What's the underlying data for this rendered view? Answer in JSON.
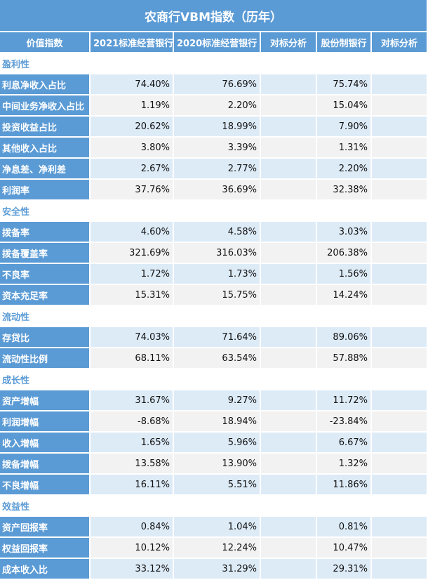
{
  "title": "农商行VBM指数（历年）",
  "headers": [
    "价值指数",
    "2021标准经营银行",
    "2020标准经营银行",
    "对标分析",
    "股份制银行",
    "对标分析"
  ],
  "sections": [
    {
      "name": "盈利性",
      "rows": [
        {
          "label": "利息净收入占比",
          "v2021": "74.40%",
          "v2020": "76.69%",
          "a1": "",
          "joint": "75.74%",
          "a2": ""
        },
        {
          "label": "中间业务净收入占比",
          "v2021": "1.19%",
          "v2020": "2.20%",
          "a1": "",
          "joint": "15.04%",
          "a2": ""
        },
        {
          "label": "投资收益占比",
          "v2021": "20.62%",
          "v2020": "18.99%",
          "a1": "",
          "joint": "7.90%",
          "a2": ""
        },
        {
          "label": "其他收入占比",
          "v2021": "3.80%",
          "v2020": "3.39%",
          "a1": "",
          "joint": "1.31%",
          "a2": ""
        },
        {
          "label": "净息差、净利差",
          "v2021": "2.67%",
          "v2020": "2.77%",
          "a1": "",
          "joint": "2.20%",
          "a2": ""
        },
        {
          "label": "利润率",
          "v2021": "37.76%",
          "v2020": "36.69%",
          "a1": "",
          "joint": "32.38%",
          "a2": ""
        }
      ]
    },
    {
      "name": "安全性",
      "rows": [
        {
          "label": "拨备率",
          "v2021": "4.60%",
          "v2020": "4.58%",
          "a1": "",
          "joint": "3.03%",
          "a2": ""
        },
        {
          "label": "拨备覆盖率",
          "v2021": "321.69%",
          "v2020": "316.03%",
          "a1": "",
          "joint": "206.38%",
          "a2": ""
        },
        {
          "label": "不良率",
          "v2021": "1.72%",
          "v2020": "1.73%",
          "a1": "",
          "joint": "1.56%",
          "a2": ""
        },
        {
          "label": "资本充足率",
          "v2021": "15.31%",
          "v2020": "15.75%",
          "a1": "",
          "joint": "14.24%",
          "a2": ""
        }
      ]
    },
    {
      "name": "流动性",
      "rows": [
        {
          "label": "存贷比",
          "v2021": "74.03%",
          "v2020": "71.64%",
          "a1": "",
          "joint": "89.06%",
          "a2": ""
        },
        {
          "label": "流动性比例",
          "v2021": "68.11%",
          "v2020": "63.54%",
          "a1": "",
          "joint": "57.88%",
          "a2": ""
        }
      ]
    },
    {
      "name": "成长性",
      "rows": [
        {
          "label": "资产增幅",
          "v2021": "31.67%",
          "v2020": "9.27%",
          "a1": "",
          "joint": "11.72%",
          "a2": ""
        },
        {
          "label": "利润增幅",
          "v2021": "-8.68%",
          "v2020": "18.94%",
          "a1": "",
          "joint": "-23.84%",
          "a2": ""
        },
        {
          "label": "收入增幅",
          "v2021": "1.65%",
          "v2020": "5.96%",
          "a1": "",
          "joint": "6.67%",
          "a2": ""
        },
        {
          "label": "拨备增幅",
          "v2021": "13.58%",
          "v2020": "13.90%",
          "a1": "",
          "joint": "1.32%",
          "a2": ""
        },
        {
          "label": "不良增幅",
          "v2021": "16.11%",
          "v2020": "5.51%",
          "a1": "",
          "joint": "11.86%",
          "a2": ""
        }
      ]
    },
    {
      "name": "效益性",
      "rows": [
        {
          "label": "资产回报率",
          "v2021": "0.84%",
          "v2020": "1.04%",
          "a1": "",
          "joint": "0.81%",
          "a2": ""
        },
        {
          "label": "权益回报率",
          "v2021": "10.12%",
          "v2020": "12.24%",
          "a1": "",
          "joint": "10.47%",
          "a2": ""
        },
        {
          "label": "成本收入比",
          "v2021": "33.12%",
          "v2020": "31.29%",
          "a1": "",
          "joint": "29.31%",
          "a2": ""
        }
      ]
    }
  ]
}
